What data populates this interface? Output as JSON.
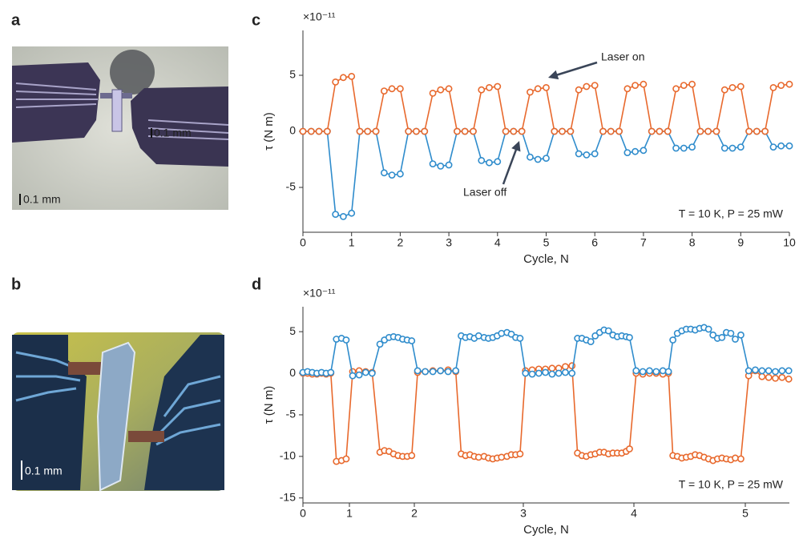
{
  "photos": [
    {
      "panel": "a",
      "scale_bar": "0.1 mm",
      "inset_label": "0.1 mm"
    },
    {
      "panel": "b",
      "scale_bar": "0.1 mm"
    }
  ],
  "chart_data": [
    {
      "type": "line",
      "panel": "c",
      "multiplier": "×10⁻¹¹",
      "y_label": "τ (N m)",
      "x_label": "Cycle, N",
      "condition": "T = 10 K, P = 25 mW",
      "annotations": [
        {
          "text": "Laser on"
        },
        {
          "text": "Laser off"
        }
      ],
      "xlim": [
        0,
        10
      ],
      "xticks": [
        0,
        1,
        2,
        3,
        4,
        5,
        6,
        7,
        8,
        9,
        10
      ],
      "ylim": [
        -9,
        9
      ],
      "yticks": [
        -5,
        0,
        5
      ],
      "x": [
        0,
        0.17,
        0.33,
        0.5,
        0.67,
        0.83,
        1,
        1.17,
        1.33,
        1.5,
        1.67,
        1.83,
        2,
        2.17,
        2.33,
        2.5,
        2.67,
        2.83,
        3,
        3.17,
        3.33,
        3.5,
        3.67,
        3.83,
        4,
        4.17,
        4.33,
        4.5,
        4.67,
        4.83,
        5,
        5.17,
        5.33,
        5.5,
        5.67,
        5.83,
        6,
        6.17,
        6.33,
        6.5,
        6.67,
        6.83,
        7,
        7.17,
        7.33,
        7.5,
        7.67,
        7.83,
        8,
        8.17,
        8.33,
        8.5,
        8.67,
        8.83,
        9,
        9.17,
        9.33,
        9.5,
        9.67,
        9.83,
        10
      ],
      "series": [
        {
          "color": "#2f8ccc",
          "values": [
            0,
            0,
            0,
            0,
            -7.4,
            -7.6,
            -7.3,
            0,
            0,
            0,
            -3.7,
            -3.9,
            -3.8,
            0,
            0,
            0,
            -2.9,
            -3.1,
            -3.0,
            0,
            0,
            0,
            -2.6,
            -2.8,
            -2.7,
            0,
            0,
            0,
            -2.3,
            -2.5,
            -2.4,
            0,
            0,
            0,
            -2.0,
            -2.1,
            -2.0,
            0,
            0,
            0,
            -1.9,
            -1.8,
            -1.7,
            0,
            0,
            0,
            -1.5,
            -1.5,
            -1.4,
            0,
            0,
            0,
            -1.5,
            -1.5,
            -1.4,
            0,
            0,
            0,
            -1.4,
            -1.3,
            -1.3
          ]
        },
        {
          "color": "#e8692d",
          "values": [
            0,
            0,
            0,
            0,
            4.4,
            4.8,
            4.9,
            0,
            0,
            0,
            3.6,
            3.8,
            3.8,
            0,
            0,
            0,
            3.4,
            3.7,
            3.8,
            0,
            0,
            0,
            3.7,
            3.9,
            4.0,
            0,
            0,
            0,
            3.5,
            3.8,
            3.9,
            0,
            0,
            0,
            3.7,
            4.0,
            4.1,
            0,
            0,
            0,
            3.8,
            4.1,
            4.2,
            0,
            0,
            0,
            3.8,
            4.1,
            4.2,
            0,
            0,
            0,
            3.7,
            3.9,
            4.0,
            0,
            0,
            0,
            3.9,
            4.1,
            4.2
          ]
        }
      ]
    },
    {
      "type": "line",
      "panel": "d",
      "multiplier": "×10⁻¹¹",
      "y_label": "τ (N m)",
      "x_label": "Cycle, N",
      "condition": "T = 10 K, P = 25 mW",
      "xlim": [
        0,
        5.4
      ],
      "xticks": [
        0,
        1,
        2,
        3,
        4,
        5
      ],
      "ylim": [
        -15.6,
        8
      ],
      "yticks": [
        -15,
        -10,
        -5,
        0,
        5
      ],
      "x": [
        0,
        0.1,
        0.2,
        0.3,
        0.4,
        0.5,
        0.6,
        0.72,
        0.83,
        0.93,
        1.05,
        1.15,
        1.25,
        1.35,
        1.47,
        1.54,
        1.61,
        1.68,
        1.75,
        1.82,
        1.89,
        1.96,
        2.03,
        2.1,
        2.17,
        2.24,
        2.31,
        2.38,
        2.43,
        2.47,
        2.51,
        2.55,
        2.59,
        2.64,
        2.68,
        2.72,
        2.76,
        2.8,
        2.85,
        2.89,
        2.93,
        2.97,
        3.02,
        3.08,
        3.14,
        3.2,
        3.26,
        3.32,
        3.38,
        3.44,
        3.49,
        3.53,
        3.57,
        3.61,
        3.65,
        3.69,
        3.73,
        3.77,
        3.81,
        3.85,
        3.89,
        3.93,
        3.96,
        4.02,
        4.08,
        4.14,
        4.2,
        4.26,
        4.31,
        4.35,
        4.39,
        4.43,
        4.47,
        4.51,
        4.55,
        4.59,
        4.63,
        4.67,
        4.71,
        4.75,
        4.79,
        4.83,
        4.87,
        4.91,
        4.96,
        5.03,
        5.09,
        5.15,
        5.21,
        5.27,
        5.33,
        5.39
      ],
      "series": [
        {
          "color": "#e8692d",
          "values": [
            0,
            0,
            -0.1,
            -0.1,
            0,
            -0.1,
            0,
            -10.6,
            -10.5,
            -10.3,
            0.2,
            0.3,
            0.2,
            0.1,
            -9.5,
            -9.3,
            -9.4,
            -9.7,
            -9.9,
            -10,
            -10,
            -9.9,
            0.1,
            0.2,
            0.3,
            0.3,
            0.4,
            0.2,
            -9.7,
            -9.9,
            -9.8,
            -10,
            -10.1,
            -10,
            -10.2,
            -10.3,
            -10.2,
            -10.1,
            -10,
            -9.8,
            -9.8,
            -9.7,
            0.3,
            0.4,
            0.5,
            0.5,
            0.6,
            0.6,
            0.8,
            0.9,
            -9.6,
            -9.9,
            -10,
            -9.8,
            -9.7,
            -9.5,
            -9.5,
            -9.7,
            -9.6,
            -9.6,
            -9.6,
            -9.4,
            -9.1,
            0,
            -0.1,
            0,
            0,
            -0.1,
            0,
            -9.9,
            -10,
            -10.2,
            -10.1,
            -10,
            -9.8,
            -9.9,
            -10.1,
            -10.3,
            -10.5,
            -10.3,
            -10.2,
            -10.3,
            -10.4,
            -10.2,
            -10.3,
            -0.3,
            0.3,
            -0.4,
            -0.5,
            -0.6,
            -0.5,
            -0.7
          ]
        },
        {
          "color": "#2f8ccc",
          "values": [
            0.1,
            0.2,
            0.1,
            0,
            0.1,
            0,
            0.1,
            4.1,
            4.2,
            4.0,
            -0.3,
            -0.2,
            0.1,
            0,
            3.5,
            4.0,
            4.3,
            4.4,
            4.3,
            4.1,
            4.0,
            3.9,
            0.3,
            0.2,
            0.2,
            0.3,
            0.2,
            0.3,
            4.5,
            4.3,
            4.4,
            4.2,
            4.5,
            4.3,
            4.2,
            4.3,
            4.5,
            4.8,
            4.9,
            4.7,
            4.3,
            4.2,
            0,
            -0.1,
            0,
            0.1,
            -0.1,
            0,
            0.1,
            0,
            4.2,
            4.2,
            4.0,
            3.8,
            4.5,
            4.9,
            5.2,
            5.1,
            4.6,
            4.4,
            4.5,
            4.4,
            4.3,
            0.3,
            0.2,
            0.3,
            0.2,
            0.3,
            0.2,
            4.0,
            4.8,
            5.1,
            5.3,
            5.3,
            5.2,
            5.4,
            5.5,
            5.3,
            4.6,
            4.2,
            4.3,
            4.9,
            4.8,
            4.1,
            4.6,
            0.3,
            0.4,
            0.3,
            0.3,
            0.2,
            0.3,
            0.3
          ]
        }
      ]
    }
  ]
}
